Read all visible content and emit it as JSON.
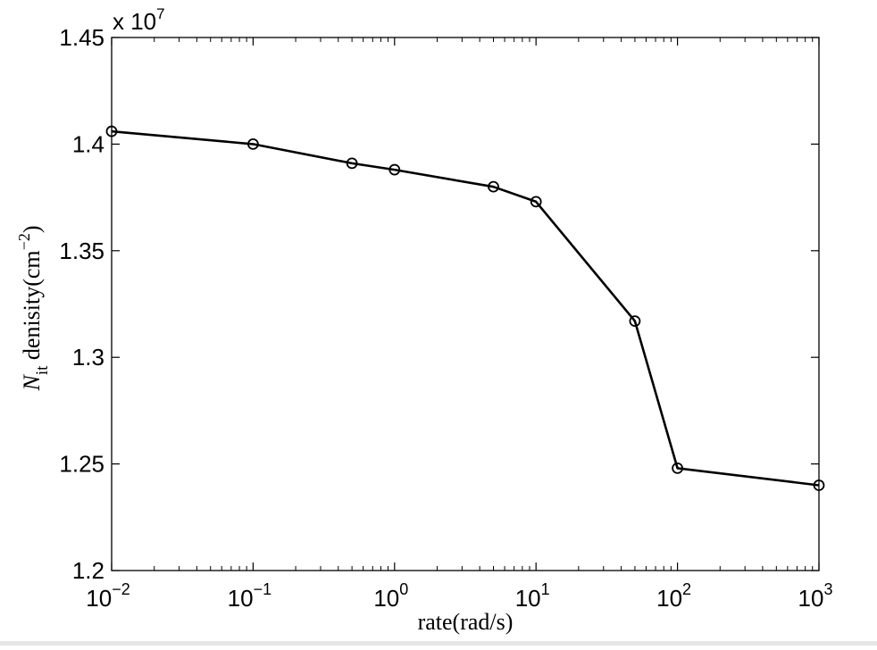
{
  "chart_data": {
    "type": "line",
    "title": "",
    "xlabel": "rate(rad/s)",
    "ylabel_symbol": "N",
    "ylabel_subscript": "it",
    "ylabel_text": " denisity(cm",
    "ylabel_exponent": "−2",
    "ylabel_close": ")",
    "xscale": "log",
    "xlim": [
      0.01,
      1000
    ],
    "ylim": [
      1.2,
      1.45
    ],
    "y_multiplier_text": "x 10",
    "y_multiplier_exponent": "7",
    "xticks": [
      {
        "value": 0.01,
        "base": "10",
        "exp": "−2"
      },
      {
        "value": 0.1,
        "base": "10",
        "exp": "−1"
      },
      {
        "value": 1,
        "base": "10",
        "exp": "0"
      },
      {
        "value": 10,
        "base": "10",
        "exp": "1"
      },
      {
        "value": 100,
        "base": "10",
        "exp": "2"
      },
      {
        "value": 1000,
        "base": "10",
        "exp": "3"
      }
    ],
    "yticks": [
      {
        "value": 1.2,
        "label": "1.2"
      },
      {
        "value": 1.25,
        "label": "1.25"
      },
      {
        "value": 1.3,
        "label": "1.3"
      },
      {
        "value": 1.35,
        "label": "1.35"
      },
      {
        "value": 1.4,
        "label": "1.4"
      },
      {
        "value": 1.45,
        "label": "1.45"
      }
    ],
    "grid": false,
    "marker": "circle",
    "line_color": "#000000",
    "series": [
      {
        "x": [
          0.01,
          0.1,
          0.5,
          1,
          5,
          10,
          50,
          100,
          1000
        ],
        "values": [
          1.406,
          1.4,
          1.391,
          1.388,
          1.38,
          1.373,
          1.317,
          1.248,
          1.24
        ]
      }
    ]
  }
}
